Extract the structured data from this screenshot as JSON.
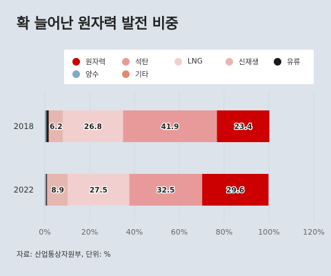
{
  "title": "확 늘어난 원자력 발전 비중",
  "source": "자료: 산업통상자원부, 단위: %",
  "chart_data": {
    "type": "bar",
    "orientation": "horizontal",
    "stacked": true,
    "categories": [
      "2018",
      "2022"
    ],
    "xlim": [
      0,
      120
    ],
    "xticks": [
      "0%",
      "20%",
      "40%",
      "60%",
      "80%",
      "100%",
      "120%"
    ],
    "grid": true,
    "legend_position": "top",
    "series": [
      {
        "name": "양수",
        "color": "#7fa8c9",
        "values": [
          0.7,
          0.6
        ],
        "labels": [
          "",
          ""
        ]
      },
      {
        "name": "유류",
        "color": "#1a1a1a",
        "values": [
          1.0,
          0.3
        ],
        "labels": [
          "",
          ""
        ]
      },
      {
        "name": "기타",
        "color": "#e08a70",
        "values": [
          0.2,
          0.4
        ],
        "labels": [
          "",
          ""
        ]
      },
      {
        "name": "신재생",
        "color": "#e6b7b0",
        "values": [
          6.2,
          8.9
        ],
        "labels": [
          "6.2",
          "8.9"
        ]
      },
      {
        "name": "LNG",
        "color": "#f2cfcf",
        "values": [
          26.8,
          27.5
        ],
        "labels": [
          "26.8",
          "27.5"
        ]
      },
      {
        "name": "석탄",
        "color": "#e89a9a",
        "values": [
          41.9,
          32.5
        ],
        "labels": [
          "41.9",
          "32.5"
        ]
      },
      {
        "name": "원자력",
        "color": "#cc0000",
        "values": [
          23.4,
          29.6
        ],
        "labels": [
          "23.4",
          "29.6"
        ]
      }
    ],
    "legend_order": [
      "원자력",
      "석탄",
      "LNG",
      "신재생",
      "유류",
      "양수",
      "기타"
    ]
  }
}
